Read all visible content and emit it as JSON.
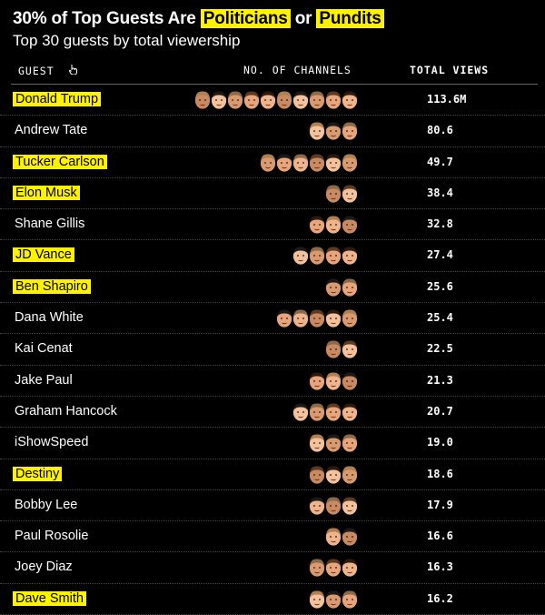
{
  "header": {
    "title_prefix": "30% of Top Guests Are",
    "title_hl1": "Politicians",
    "title_or": "or",
    "title_hl2": "Pundits",
    "subtitle": "Top 30 guests by total viewership"
  },
  "columns": {
    "guest": "GUEST",
    "channels": "NO. OF CHANNELS",
    "views": "TOTAL VIEWS"
  },
  "colors": {
    "highlight": "#fff200",
    "background": "#000000",
    "skin": [
      "#f0b48c",
      "#e8a47a",
      "#d99a70",
      "#f3c29c",
      "#c98a62"
    ],
    "hair": [
      "#2a1a12",
      "#5a3a22",
      "#8a6a4a",
      "#1a1a1a",
      "#b08050"
    ]
  },
  "chart_data": {
    "type": "table",
    "title": "30% of Top Guests Are Politicians or Pundits",
    "subtitle": "Top 30 guests by total viewership",
    "columns": [
      "GUEST",
      "NO. OF CHANNELS",
      "TOTAL VIEWS"
    ],
    "rows": [
      {
        "guest": "Donald Trump",
        "channels": 10,
        "views": "113.6M",
        "value": 113.6,
        "highlight": true
      },
      {
        "guest": "Andrew Tate",
        "channels": 3,
        "views": "80.6",
        "value": 80.6,
        "highlight": false
      },
      {
        "guest": "Tucker Carlson",
        "channels": 6,
        "views": "49.7",
        "value": 49.7,
        "highlight": true
      },
      {
        "guest": "Elon Musk",
        "channels": 2,
        "views": "38.4",
        "value": 38.4,
        "highlight": true
      },
      {
        "guest": "Shane Gillis",
        "channels": 3,
        "views": "32.8",
        "value": 32.8,
        "highlight": false
      },
      {
        "guest": "JD Vance",
        "channels": 4,
        "views": "27.4",
        "value": 27.4,
        "highlight": true
      },
      {
        "guest": "Ben Shapiro",
        "channels": 2,
        "views": "25.6",
        "value": 25.6,
        "highlight": true
      },
      {
        "guest": "Dana White",
        "channels": 5,
        "views": "25.4",
        "value": 25.4,
        "highlight": false
      },
      {
        "guest": "Kai Cenat",
        "channels": 2,
        "views": "22.5",
        "value": 22.5,
        "highlight": false
      },
      {
        "guest": "Jake Paul",
        "channels": 3,
        "views": "21.3",
        "value": 21.3,
        "highlight": false
      },
      {
        "guest": "Graham Hancock",
        "channels": 4,
        "views": "20.7",
        "value": 20.7,
        "highlight": false
      },
      {
        "guest": "iShowSpeed",
        "channels": 3,
        "views": "19.0",
        "value": 19.0,
        "highlight": false
      },
      {
        "guest": "Destiny",
        "channels": 3,
        "views": "18.6",
        "value": 18.6,
        "highlight": true
      },
      {
        "guest": "Bobby Lee",
        "channels": 3,
        "views": "17.9",
        "value": 17.9,
        "highlight": false
      },
      {
        "guest": "Paul Rosolie",
        "channels": 2,
        "views": "16.6",
        "value": 16.6,
        "highlight": false
      },
      {
        "guest": "Joey Diaz",
        "channels": 3,
        "views": "16.3",
        "value": 16.3,
        "highlight": false
      },
      {
        "guest": "Dave Smith",
        "channels": 3,
        "views": "16.2",
        "value": 16.2,
        "highlight": true
      }
    ]
  }
}
